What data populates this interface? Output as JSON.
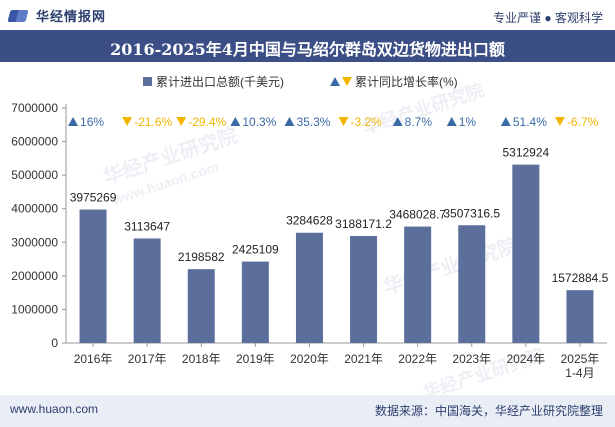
{
  "header": {
    "logo_text": "华经情报网",
    "slogan": "专业严谨 ● 客观科学"
  },
  "footer": {
    "website": "www.huaon.com",
    "source": "数据来源：中国海关，华经产业研究院整理"
  },
  "watermark": {
    "text": "华经产业研究院",
    "url": "www.huaon.com"
  },
  "colors": {
    "bar": "#5b6e9c",
    "up": "#3b6aa8",
    "down": "#f2b600",
    "title_bg": "#3b4f86"
  },
  "chart_data": {
    "type": "bar",
    "title": "2016-2025年4月中国与马绍尔群岛双边货物进出口额",
    "categories": [
      "2016年",
      "2017年",
      "2018年",
      "2019年",
      "2020年",
      "2021年",
      "2022年",
      "2023年",
      "2024年",
      "2025年\n1-4月"
    ],
    "series": [
      {
        "name": "累计进出口总额(千美元)",
        "values": [
          3975269,
          3113647,
          2198582,
          2425109,
          3284628,
          3188171.2,
          3468028.7,
          3507316.5,
          5312924,
          1572884.5
        ],
        "labels": [
          "3975269",
          "3113647",
          "2198582",
          "2425109",
          "3284628",
          "3188171.2",
          "3468028.7",
          "3507316.5",
          "5312924",
          "1572884.5"
        ]
      },
      {
        "name": "累计同比增长率(%)",
        "values": [
          16,
          -21.6,
          -29.4,
          10.3,
          35.3,
          -3.2,
          8.7,
          1,
          51.4,
          -6.7
        ],
        "labels": [
          "16%",
          "-21.6%",
          "-29.4%",
          "10.3%",
          "35.3%",
          "-3.2%",
          "8.7%",
          "1%",
          "51.4%",
          "-6.7%"
        ]
      }
    ],
    "yticks": [
      "0",
      "1000000",
      "2000000",
      "3000000",
      "4000000",
      "5000000",
      "6000000",
      "7000000"
    ],
    "ylim": [
      0,
      7000000
    ],
    "legend_position": "top-center",
    "grid": false
  }
}
